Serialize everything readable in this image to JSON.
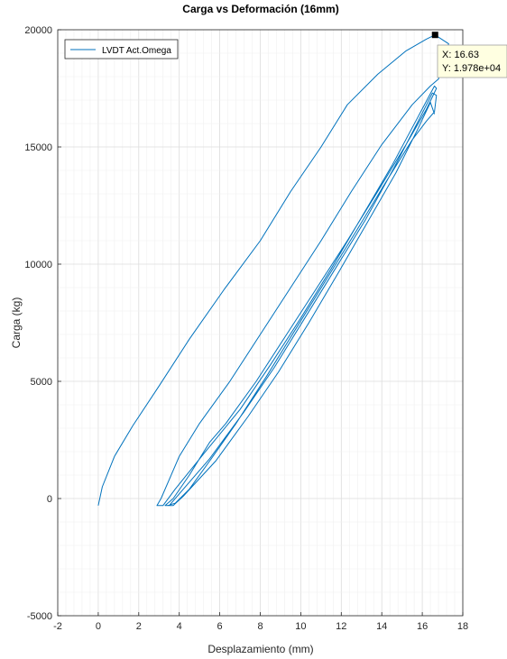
{
  "chart_data": {
    "type": "line",
    "title": "Carga vs Deformación (16mm)",
    "xlabel": "Desplazamiento (mm)",
    "ylabel": "Carga (kg)",
    "xlim": [
      -2,
      18
    ],
    "ylim": [
      -5000,
      20000
    ],
    "xticks": [
      -2,
      0,
      2,
      4,
      6,
      8,
      10,
      12,
      14,
      16,
      18
    ],
    "xtick_labels": [
      "-2",
      "0",
      "2",
      "4",
      "6",
      "8",
      "10",
      "12",
      "14",
      "16",
      "18"
    ],
    "yticks": [
      -5000,
      0,
      5000,
      10000,
      15000,
      20000
    ],
    "ytick_labels": [
      "-5000",
      "0",
      "5000",
      "10000",
      "15000",
      "20000"
    ],
    "grid": "major and minor",
    "legend_position": "top-left",
    "series": [
      {
        "name": "LVDT Act.Omega",
        "color": "#0072bd",
        "x": [
          0.0,
          0.2,
          0.8,
          1.7,
          3.0,
          4.5,
          6.2,
          8.0,
          9.5,
          11.0,
          12.3,
          13.8,
          15.2,
          16.2,
          16.63,
          17.3,
          16.8,
          16.4,
          15.5,
          14.0,
          12.5,
          11.0,
          9.5,
          8.0,
          6.5,
          5.0,
          4.0,
          3.5,
          3.1,
          2.9,
          3.2,
          3.8,
          5.2,
          7.0,
          8.5,
          10.0,
          11.5,
          13.0,
          14.5,
          15.8,
          16.6,
          16.7,
          16.2,
          15.2,
          13.8,
          12.3,
          10.8,
          9.3,
          7.8,
          6.3,
          5.5,
          4.5,
          3.7,
          3.3,
          3.5,
          4.0,
          5.5,
          7.2,
          8.7,
          10.2,
          11.7,
          13.2,
          14.6,
          15.8,
          16.5,
          16.7,
          16.6,
          16.2,
          15.5,
          14.2,
          12.8,
          11.3,
          9.8,
          8.3,
          6.8,
          5.5,
          4.5,
          3.8,
          3.4,
          3.7,
          4.2,
          5.8,
          7.4,
          8.9,
          10.4,
          11.9,
          13.3,
          14.7,
          15.8,
          16.4,
          16.6
        ],
        "y": [
          -300,
          500,
          1800,
          3100,
          4800,
          6800,
          8900,
          11000,
          13100,
          15000,
          16800,
          18100,
          19100,
          19600,
          19780,
          19400,
          17900,
          17600,
          16800,
          15100,
          13100,
          11000,
          9000,
          7000,
          5000,
          3200,
          1800,
          800,
          0,
          -300,
          -300,
          400,
          1900,
          3800,
          5700,
          7700,
          9800,
          12000,
          14200,
          16300,
          17600,
          17500,
          16600,
          15100,
          13100,
          11000,
          9000,
          7000,
          5000,
          3200,
          2400,
          1000,
          0,
          -300,
          -300,
          200,
          1700,
          3700,
          5600,
          7700,
          9800,
          11900,
          14100,
          16100,
          17300,
          17200,
          16500,
          16100,
          15300,
          13500,
          11500,
          9400,
          7300,
          5200,
          3200,
          1600,
          400,
          -200,
          -300,
          -300,
          100,
          1600,
          3500,
          5400,
          7500,
          9700,
          11800,
          13900,
          15800,
          16900,
          16400
        ]
      }
    ],
    "datatip": {
      "x_label": "X: 16.63",
      "y_label": "Y: 1.978e+04",
      "x": 16.63,
      "y": 19780
    }
  }
}
